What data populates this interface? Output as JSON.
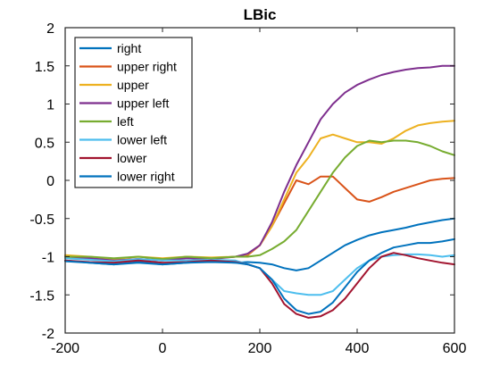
{
  "chart_data": {
    "type": "line",
    "title": "LBic",
    "xlabel": "",
    "ylabel": "",
    "xlim": [
      -200,
      600
    ],
    "ylim": [
      -2,
      2
    ],
    "xticks": [
      -200,
      0,
      200,
      400,
      600
    ],
    "yticks": [
      -2,
      -1.5,
      -1,
      -0.5,
      0,
      0.5,
      1,
      1.5,
      2
    ],
    "xtick_labels": [
      "-200",
      "0",
      "200",
      "400",
      "600"
    ],
    "ytick_labels": [
      "-2",
      "-1.5",
      "-1",
      "-0.5",
      "0",
      "0.5",
      "1",
      "1.5",
      "2"
    ],
    "grid": false,
    "legend_position": "top-left",
    "x": [
      -200,
      -150,
      -100,
      -50,
      0,
      50,
      100,
      150,
      175,
      200,
      225,
      250,
      275,
      300,
      325,
      350,
      375,
      400,
      425,
      450,
      475,
      500,
      525,
      550,
      575,
      600
    ],
    "series": [
      {
        "name": "right",
        "color": "#0072BD",
        "values": [
          -1.05,
          -1.08,
          -1.1,
          -1.07,
          -1.1,
          -1.08,
          -1.06,
          -1.08,
          -1.07,
          -1.08,
          -1.1,
          -1.15,
          -1.18,
          -1.15,
          -1.05,
          -0.95,
          -0.85,
          -0.78,
          -0.72,
          -0.68,
          -0.65,
          -0.62,
          -0.58,
          -0.55,
          -0.52,
          -0.5
        ]
      },
      {
        "name": "upper right",
        "color": "#D95319",
        "values": [
          -1.0,
          -1.02,
          -1.05,
          -1.03,
          -1.05,
          -1.0,
          -1.02,
          -1.0,
          -0.98,
          -0.85,
          -0.6,
          -0.3,
          0.0,
          -0.05,
          0.05,
          0.05,
          -0.1,
          -0.25,
          -0.28,
          -0.22,
          -0.15,
          -0.1,
          -0.05,
          0.0,
          0.02,
          0.03
        ]
      },
      {
        "name": "upper",
        "color": "#EDB120",
        "values": [
          -0.98,
          -1.0,
          -1.03,
          -1.0,
          -1.02,
          -1.0,
          -1.01,
          -1.0,
          -0.97,
          -0.85,
          -0.6,
          -0.25,
          0.1,
          0.3,
          0.55,
          0.6,
          0.55,
          0.5,
          0.5,
          0.48,
          0.55,
          0.65,
          0.72,
          0.75,
          0.77,
          0.78
        ]
      },
      {
        "name": "upper left",
        "color": "#7E2F8E",
        "values": [
          -1.0,
          -1.02,
          -1.05,
          -1.03,
          -1.05,
          -1.02,
          -1.03,
          -1.0,
          -0.96,
          -0.85,
          -0.55,
          -0.15,
          0.2,
          0.5,
          0.8,
          1.0,
          1.15,
          1.25,
          1.32,
          1.38,
          1.42,
          1.45,
          1.47,
          1.48,
          1.5,
          1.5
        ]
      },
      {
        "name": "left",
        "color": "#77AC30",
        "values": [
          -1.0,
          -1.0,
          -1.02,
          -1.0,
          -1.03,
          -1.0,
          -1.02,
          -1.0,
          -1.0,
          -0.98,
          -0.9,
          -0.8,
          -0.65,
          -0.4,
          -0.15,
          0.1,
          0.3,
          0.45,
          0.52,
          0.5,
          0.52,
          0.52,
          0.5,
          0.45,
          0.38,
          0.33
        ]
      },
      {
        "name": "lower left",
        "color": "#4DBEEE",
        "values": [
          -1.02,
          -1.04,
          -1.06,
          -1.03,
          -1.05,
          -1.05,
          -1.04,
          -1.05,
          -1.1,
          -1.15,
          -1.3,
          -1.45,
          -1.48,
          -1.5,
          -1.5,
          -1.45,
          -1.3,
          -1.15,
          -1.05,
          -1.0,
          -0.98,
          -0.97,
          -0.97,
          -0.98,
          -1.0,
          -0.98
        ]
      },
      {
        "name": "lower",
        "color": "#A2142F",
        "values": [
          -1.05,
          -1.07,
          -1.08,
          -1.05,
          -1.08,
          -1.07,
          -1.05,
          -1.07,
          -1.1,
          -1.15,
          -1.35,
          -1.62,
          -1.75,
          -1.8,
          -1.78,
          -1.7,
          -1.55,
          -1.35,
          -1.15,
          -1.0,
          -0.95,
          -0.98,
          -1.02,
          -1.05,
          -1.08,
          -1.1
        ]
      },
      {
        "name": "lower right",
        "color": "#0072BD",
        "values": [
          -1.06,
          -1.08,
          -1.1,
          -1.08,
          -1.1,
          -1.08,
          -1.07,
          -1.08,
          -1.1,
          -1.15,
          -1.3,
          -1.55,
          -1.7,
          -1.75,
          -1.72,
          -1.6,
          -1.4,
          -1.2,
          -1.05,
          -0.95,
          -0.88,
          -0.85,
          -0.82,
          -0.82,
          -0.8,
          -0.77
        ]
      }
    ]
  }
}
